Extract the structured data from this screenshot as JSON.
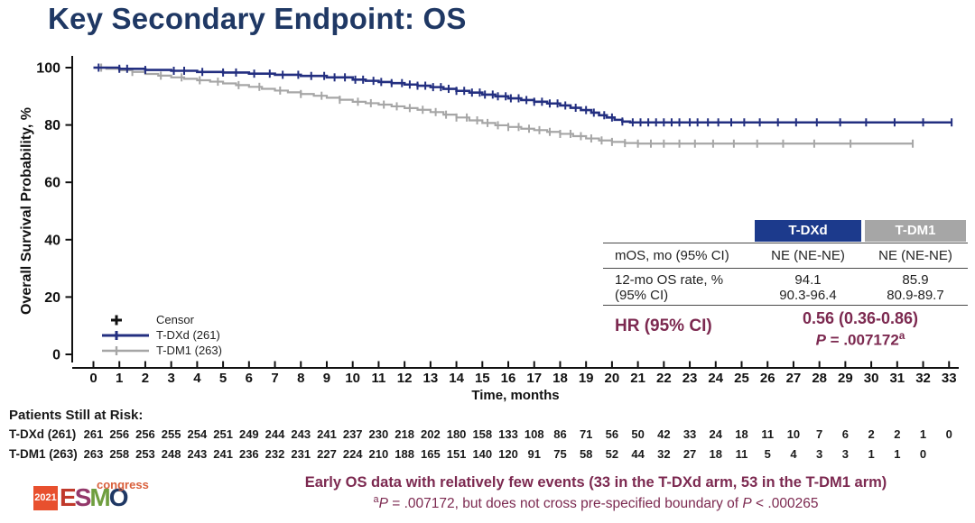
{
  "title": "Key Secondary Endpoint: OS",
  "colors": {
    "title_navy": "#1f3864",
    "tdxd_blue": "#232f80",
    "tdm1_gray": "#a6a6a6",
    "maroon": "#7c2950",
    "header_blue": "#1c3a8c",
    "header_gray": "#a6a6a6",
    "axis_black": "#111111"
  },
  "chart_data": {
    "type": "line",
    "subtype": "kaplan-meier-step",
    "title": "",
    "xlabel": "Time, months",
    "ylabel": "Overall Survival Probability, %",
    "xlim": [
      0,
      33
    ],
    "ylim": [
      0,
      100
    ],
    "grid": false,
    "legend_position": "bottom-left-inside",
    "x_ticks": [
      0,
      1,
      2,
      3,
      4,
      5,
      6,
      7,
      8,
      9,
      10,
      11,
      12,
      13,
      14,
      15,
      16,
      17,
      18,
      19,
      20,
      21,
      22,
      23,
      24,
      25,
      26,
      27,
      28,
      29,
      30,
      31,
      32,
      33
    ],
    "y_ticks": [
      0,
      20,
      40,
      60,
      80,
      100
    ],
    "legend": [
      {
        "label": "Censor"
      },
      {
        "label": "T-DXd (261)"
      },
      {
        "label": "T-DM1 (263)"
      }
    ],
    "series": [
      {
        "name": "T-DXd",
        "color": "#232f80",
        "width": 2.6,
        "steps": [
          [
            0,
            100
          ],
          [
            1,
            99.6
          ],
          [
            2,
            99.2
          ],
          [
            3,
            98.9
          ],
          [
            4,
            98.5
          ],
          [
            5,
            98.3
          ],
          [
            6,
            97.9
          ],
          [
            7,
            97.5
          ],
          [
            8,
            97.1
          ],
          [
            9,
            96.6
          ],
          [
            10,
            95.8
          ],
          [
            10.5,
            95.4
          ],
          [
            11,
            95
          ],
          [
            11.5,
            94.6
          ],
          [
            12,
            94.1
          ],
          [
            12.5,
            93.7
          ],
          [
            13,
            93.2
          ],
          [
            13.5,
            92.6
          ],
          [
            14,
            91.9
          ],
          [
            14.5,
            91.3
          ],
          [
            15,
            90.6
          ],
          [
            15.5,
            90
          ],
          [
            16,
            89.3
          ],
          [
            16.5,
            88.7
          ],
          [
            17,
            88.1
          ],
          [
            17.5,
            87.5
          ],
          [
            18,
            86.8
          ],
          [
            18.4,
            86
          ],
          [
            18.8,
            85.2
          ],
          [
            19.2,
            84.3
          ],
          [
            19.5,
            83.4
          ],
          [
            19.8,
            82.6
          ],
          [
            20.1,
            81.8
          ],
          [
            20.4,
            81.2
          ],
          [
            20.7,
            80.9
          ],
          [
            33.1,
            80.9
          ]
        ],
        "censors": [
          0.2,
          1.0,
          1.3,
          2.0,
          3.1,
          3.5,
          4.2,
          5.0,
          5.5,
          6.2,
          6.8,
          7.3,
          7.9,
          8.4,
          8.9,
          9.3,
          9.7,
          10.1,
          10.4,
          10.8,
          11.1,
          11.5,
          11.9,
          12.2,
          12.5,
          12.8,
          13.1,
          13.4,
          13.7,
          14.0,
          14.3,
          14.6,
          14.9,
          15.1,
          15.4,
          15.6,
          15.9,
          16.1,
          16.4,
          16.7,
          17.0,
          17.3,
          17.6,
          17.9,
          18.2,
          18.6,
          19.0,
          19.3,
          19.7,
          20.0,
          20.4,
          20.8,
          21.1,
          21.4,
          21.7,
          22.0,
          22.3,
          22.6,
          23.0,
          23.3,
          23.7,
          24.1,
          24.6,
          25.1,
          25.7,
          26.4,
          27.1,
          27.9,
          28.8,
          29.8,
          30.9,
          32.0,
          33.1
        ]
      },
      {
        "name": "T-DM1",
        "color": "#a6a6a6",
        "width": 2.2,
        "steps": [
          [
            0,
            100
          ],
          [
            0.5,
            99.6
          ],
          [
            1,
            99.1
          ],
          [
            1.5,
            98.5
          ],
          [
            2,
            97.8
          ],
          [
            2.5,
            97.2
          ],
          [
            3,
            96.6
          ],
          [
            3.5,
            96.1
          ],
          [
            4,
            95.6
          ],
          [
            4.5,
            95.1
          ],
          [
            5,
            94.5
          ],
          [
            5.5,
            93.9
          ],
          [
            6,
            93.3
          ],
          [
            6.5,
            92.6
          ],
          [
            7,
            92
          ],
          [
            7.5,
            91.4
          ],
          [
            8,
            90.8
          ],
          [
            8.5,
            90.2
          ],
          [
            9,
            89.5
          ],
          [
            9.5,
            88.8
          ],
          [
            10,
            88.1
          ],
          [
            10.5,
            87.6
          ],
          [
            11,
            87.1
          ],
          [
            11.5,
            86.5
          ],
          [
            12,
            85.9
          ],
          [
            12.5,
            85.3
          ],
          [
            13,
            84.5
          ],
          [
            13.5,
            83.6
          ],
          [
            14,
            82.6
          ],
          [
            14.5,
            81.6
          ],
          [
            15,
            80.7
          ],
          [
            15.5,
            79.9
          ],
          [
            16,
            79.3
          ],
          [
            16.5,
            78.7
          ],
          [
            17,
            78.2
          ],
          [
            17.5,
            77.6
          ],
          [
            18,
            76.9
          ],
          [
            18.5,
            76.1
          ],
          [
            19,
            75.3
          ],
          [
            19.5,
            74.6
          ],
          [
            20,
            74.1
          ],
          [
            20.5,
            73.7
          ],
          [
            21,
            73.5
          ],
          [
            31.6,
            73.5
          ]
        ],
        "censors": [
          0.3,
          1.5,
          2.6,
          3.4,
          4.1,
          4.8,
          5.6,
          6.4,
          7.2,
          8.0,
          8.8,
          9.5,
          10.2,
          10.7,
          11.2,
          11.7,
          12.2,
          12.7,
          13.2,
          13.6,
          14.0,
          14.4,
          14.8,
          15.2,
          15.6,
          16.0,
          16.4,
          16.8,
          17.2,
          17.6,
          18.0,
          18.4,
          18.8,
          19.2,
          19.6,
          20.0,
          20.5,
          21.0,
          21.5,
          22.0,
          22.6,
          23.2,
          23.9,
          24.7,
          25.6,
          26.6,
          27.8,
          29.2,
          31.6
        ]
      }
    ]
  },
  "summary_table": {
    "columns": [
      "T-DXd",
      "T-DM1"
    ],
    "rows": {
      "mos_label": "mOS, mo (95% CI)",
      "mos_tdxd": "NE (NE-NE)",
      "mos_tdm1": "NE (NE-NE)",
      "os12_label1": "12-mo OS rate, %",
      "os12_label2": "(95% CI)",
      "os12_tdxd1": "94.1",
      "os12_tdxd2": "90.3-96.4",
      "os12_tdm11": "85.9",
      "os12_tdm12": "80.9-89.7"
    },
    "hr_label": "HR (95% CI)",
    "hr_value": "0.56 (0.36-0.86)",
    "p_italic": "P",
    "p_text": " = .007172",
    "p_sup": "a"
  },
  "risk_table": {
    "heading": "Patients Still at Risk:",
    "rows": [
      {
        "label": "T-DXd (261)",
        "counts": [
          261,
          256,
          256,
          255,
          254,
          251,
          249,
          244,
          243,
          241,
          237,
          230,
          218,
          202,
          180,
          158,
          133,
          108,
          86,
          71,
          56,
          50,
          42,
          33,
          24,
          18,
          11,
          10,
          7,
          6,
          2,
          2,
          1,
          0
        ]
      },
      {
        "label": "T-DM1 (263)",
        "counts": [
          263,
          258,
          253,
          248,
          243,
          241,
          236,
          232,
          231,
          227,
          224,
          210,
          188,
          165,
          151,
          140,
          120,
          91,
          75,
          58,
          52,
          44,
          32,
          27,
          18,
          11,
          5,
          4,
          3,
          3,
          1,
          1,
          0
        ]
      }
    ]
  },
  "footer": {
    "line1": "Early OS data with relatively few events (33 in the T-DXd arm, 53 in the T-DM1 arm)",
    "line2_sup": "a",
    "line2_p1": "P",
    "line2_a": " = .007172, but does not cross pre-specified boundary of ",
    "line2_p2": "P",
    "line2_b": " < .000265"
  },
  "logo": {
    "year": "2021",
    "year_bg": "#e8502e",
    "congress": "congress",
    "congress_color": "#d95f3b",
    "letters": [
      {
        "ch": "E",
        "color": "#c0392b"
      },
      {
        "ch": "S",
        "color": "#93386a"
      },
      {
        "ch": "M",
        "color": "#6f9e3f"
      },
      {
        "ch": "O",
        "color": "#1f3864"
      }
    ]
  }
}
